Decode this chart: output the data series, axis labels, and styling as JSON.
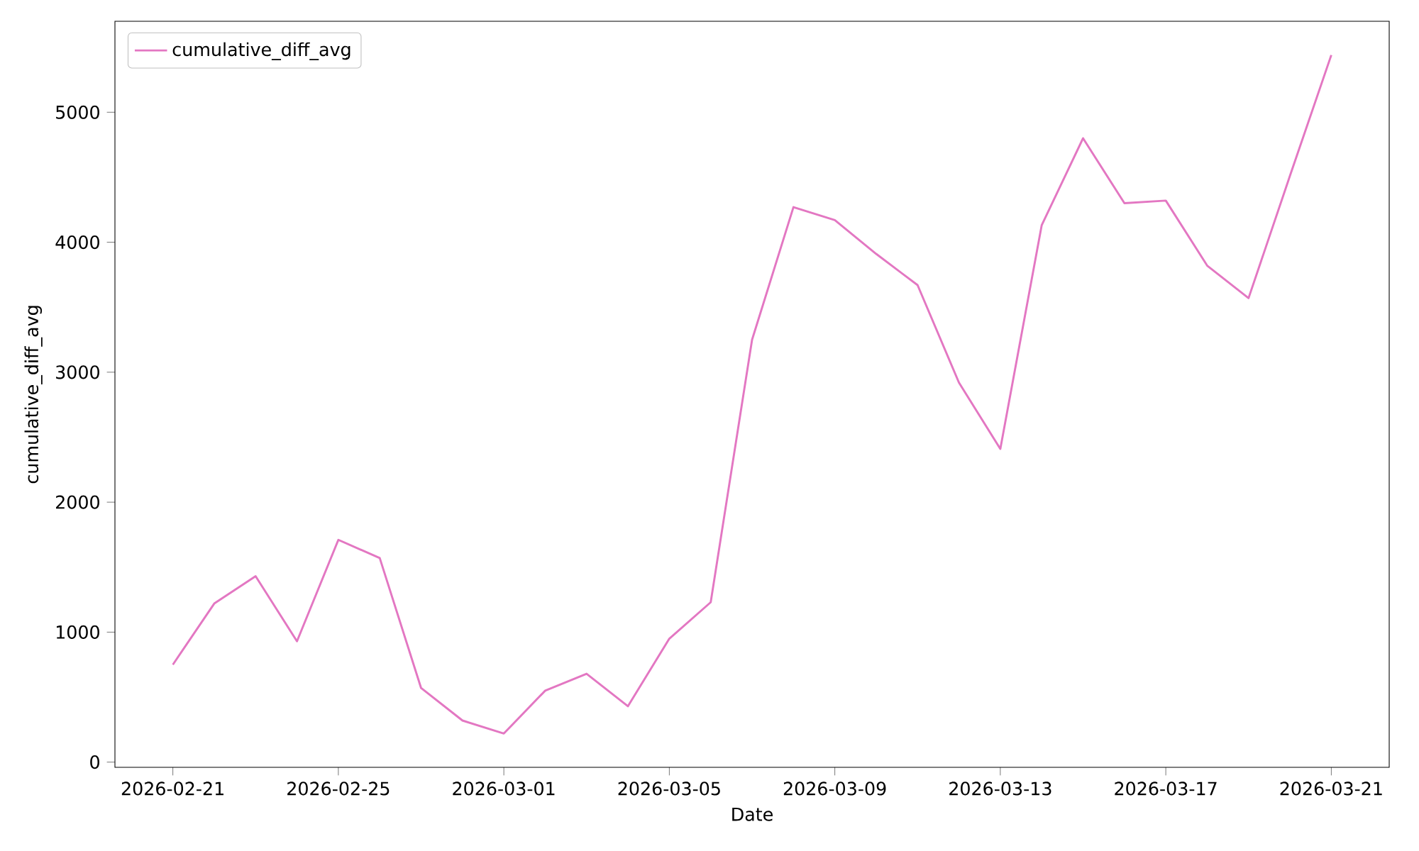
{
  "chart_data": {
    "type": "line",
    "xlabel": "Date",
    "ylabel": "cumulative_diff_avg",
    "x": [
      "2026-02-21",
      "2026-02-22",
      "2026-02-23",
      "2026-02-24",
      "2026-02-25",
      "2026-02-26",
      "2026-02-27",
      "2026-02-28",
      "2026-03-01",
      "2026-03-02",
      "2026-03-03",
      "2026-03-04",
      "2026-03-05",
      "2026-03-06",
      "2026-03-07",
      "2026-03-08",
      "2026-03-09",
      "2026-03-10",
      "2026-03-11",
      "2026-03-12",
      "2026-03-13",
      "2026-03-14",
      "2026-03-15",
      "2026-03-16",
      "2026-03-17",
      "2026-03-18",
      "2026-03-19",
      "2026-03-20",
      "2026-03-21"
    ],
    "series": [
      {
        "name": "cumulative_diff_avg",
        "color": "#e377c2",
        "values": [
          750,
          1220,
          1430,
          930,
          1710,
          1570,
          570,
          320,
          220,
          550,
          680,
          430,
          950,
          1230,
          3250,
          4270,
          4170,
          3910,
          3670,
          2920,
          2410,
          4130,
          4800,
          4300,
          4320,
          3820,
          3570,
          4510,
          5440
        ]
      }
    ],
    "xlim": [
      "2026-02-19T14:24",
      "2026-03-22T09:36"
    ],
    "ylim": [
      -40,
      5700
    ],
    "xticks": [
      "2026-02-21",
      "2026-02-25",
      "2026-03-01",
      "2026-03-05",
      "2026-03-09",
      "2026-03-13",
      "2026-03-17",
      "2026-03-21"
    ],
    "yticks": [
      0,
      1000,
      2000,
      3000,
      4000,
      5000
    ],
    "legend": "top left",
    "grid": false,
    "marker": "none",
    "line_style": "solid"
  }
}
